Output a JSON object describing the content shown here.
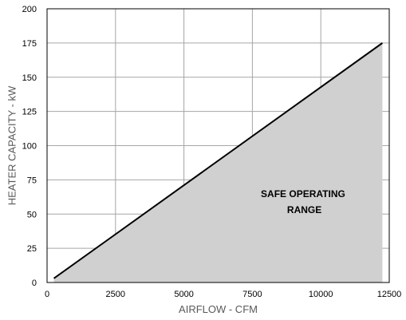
{
  "chart_data": {
    "type": "area",
    "xlabel": "AIRFLOW - CFM",
    "ylabel": "HEATER CAPACITY - kW",
    "xlim": [
      0,
      12500
    ],
    "ylim": [
      0,
      200
    ],
    "xticks": [
      0,
      2500,
      5000,
      7500,
      10000,
      12500
    ],
    "yticks": [
      0,
      25,
      50,
      75,
      100,
      125,
      150,
      175,
      200
    ],
    "x_tick_labels": [
      "0",
      "2500",
      "5000",
      "7500",
      "10000",
      "12500"
    ],
    "y_tick_labels": [
      "0",
      "25",
      "50",
      "75",
      "100",
      "125",
      "150",
      "175",
      "200"
    ],
    "grid": true,
    "series": [
      {
        "x": [
          250,
          12250
        ],
        "y": [
          3,
          175
        ]
      }
    ],
    "region_fill_color": "#d0d0d0",
    "line_color": "#000000",
    "annotation": {
      "lines": [
        "SAFE OPERATING",
        "RANGE"
      ],
      "x": 9400,
      "y": 57
    }
  }
}
